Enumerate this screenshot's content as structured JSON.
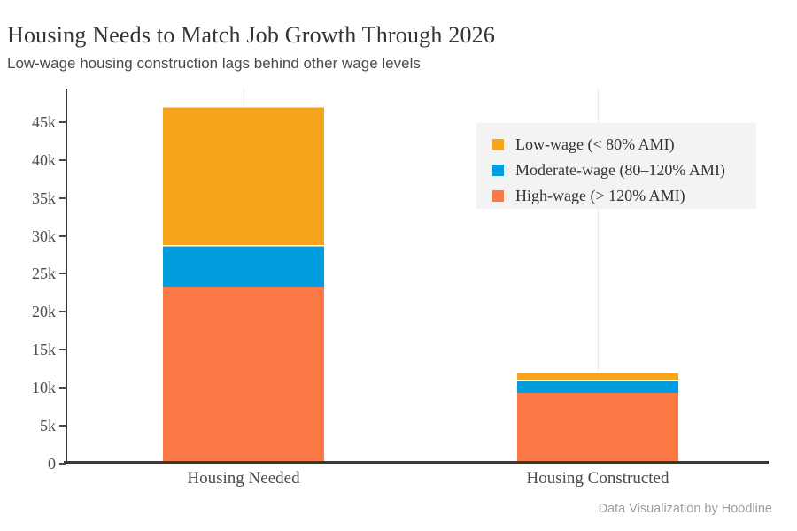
{
  "header": {
    "title": "Housing Needs to Match Job Growth Through 2026",
    "subtitle": "Low-wage housing construction lags behind other wage levels"
  },
  "footer": {
    "credit": "Data Visualization by Hoodline"
  },
  "colors": {
    "low_wage": "#F6A41C",
    "moderate_wage": "#009EDE",
    "high_wage": "#FC7946",
    "legend_background": "#F3F3F3",
    "axis": "#383838",
    "gridline": "#E8E8E8"
  },
  "chart_data": {
    "type": "bar",
    "stacked": true,
    "title": "Housing Needs to Match Job Growth Through 2026",
    "subtitle": "Low-wage housing construction lags behind other wage levels",
    "categories": [
      "Housing Needed",
      "Housing Constructed"
    ],
    "series": [
      {
        "name": "Low-wage (< 80% AMI)",
        "color": "#F6A41C",
        "values": [
          18200,
          1000
        ]
      },
      {
        "name": "Moderate-wage (80–120% AMI)",
        "color": "#009EDE",
        "values": [
          5500,
          1800
        ]
      },
      {
        "name": "High-wage (> 120% AMI)",
        "color": "#FC7946",
        "values": [
          23200,
          9200
        ]
      }
    ],
    "stack_order_bottom_to_top": [
      "High-wage (> 120% AMI)",
      "Moderate-wage (80–120% AMI)",
      "Low-wage (< 80% AMI)"
    ],
    "xlabel": "",
    "ylabel": "",
    "ylim": [
      0,
      49400
    ],
    "yticks": [
      0,
      5000,
      10000,
      15000,
      20000,
      25000,
      30000,
      35000,
      40000,
      45000
    ],
    "ytick_labels": [
      "0",
      "5k",
      "10k",
      "15k",
      "20k",
      "25k",
      "30k",
      "35k",
      "40k",
      "45k"
    ],
    "legend_position": "upper right",
    "grid": "vertical category gridlines only"
  }
}
